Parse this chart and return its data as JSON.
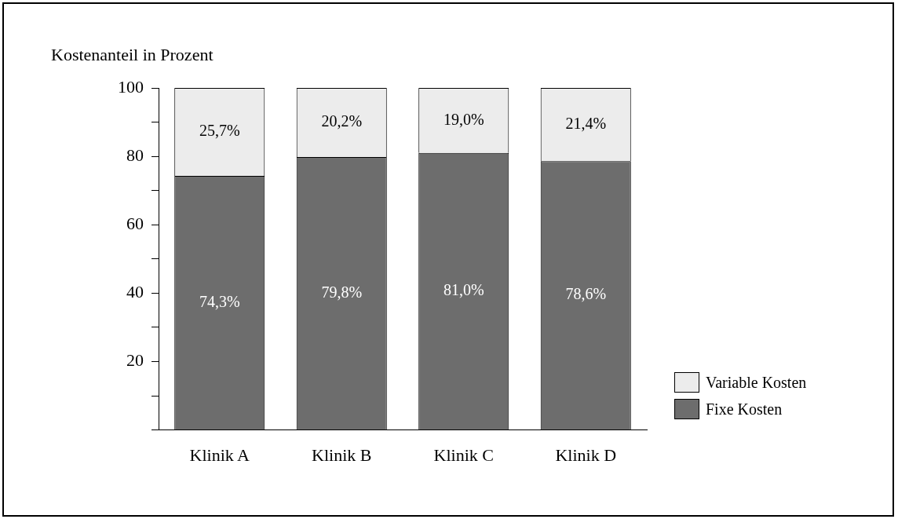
{
  "chart_data": {
    "type": "bar",
    "stacked": true,
    "ylabel": "Kostenanteil in Prozent",
    "categories": [
      "Klinik A",
      "Klinik B",
      "Klinik C",
      "Klinik D"
    ],
    "series": [
      {
        "name": "Fixe Kosten",
        "color": "#6d6d6d",
        "values": [
          74.3,
          79.8,
          81.0,
          78.6
        ],
        "value_labels": [
          "74,3%",
          "79,8%",
          "81,0%",
          "78,6%"
        ]
      },
      {
        "name": "Variable Kosten",
        "color": "#ececec",
        "values": [
          25.7,
          20.2,
          19.0,
          21.4
        ],
        "value_labels": [
          "25,7%",
          "20,2%",
          "19,0%",
          "21,4%"
        ]
      }
    ],
    "ylim": [
      0,
      100
    ],
    "yticks": [
      {
        "value": 0,
        "label": null
      },
      {
        "value": 10,
        "label": null
      },
      20,
      {
        "value": 30,
        "label": null
      },
      40,
      {
        "value": 50,
        "label": null
      },
      60,
      {
        "value": 70,
        "label": null
      },
      80,
      {
        "value": 90,
        "label": null
      },
      100
    ],
    "grid": false,
    "legend": "bottom right"
  }
}
